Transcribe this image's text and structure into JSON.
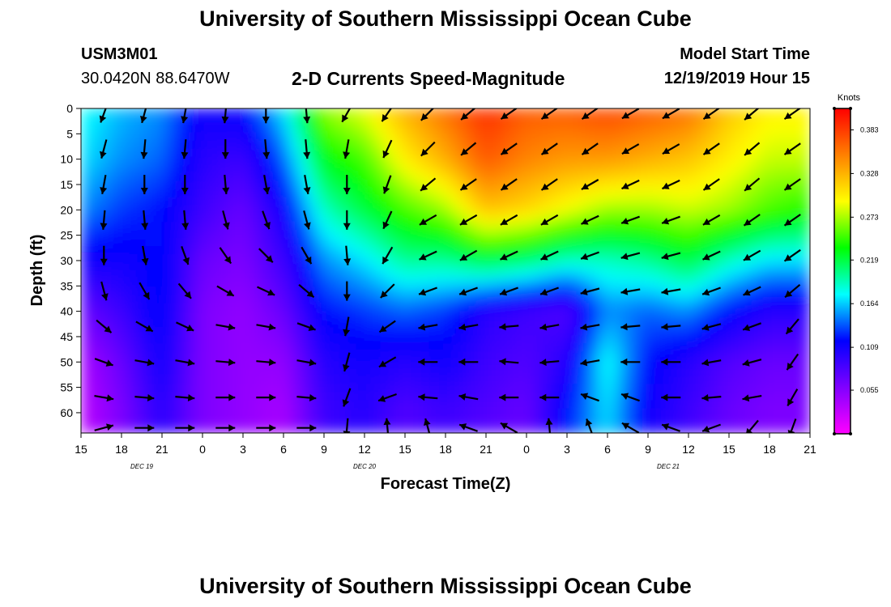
{
  "header": {
    "title": "University of Southern Mississippi Ocean Cube",
    "station_id": "USM3M01",
    "location": "30.0420N 88.6470W",
    "model_label": "Model Start Time",
    "model_start": "12/19/2019 Hour 15",
    "footer_title": "University of Southern Mississippi Ocean Cube"
  },
  "chart_data": {
    "type": "heatmap",
    "title": "2-D Currents Speed-Magnitude",
    "xlabel": "Forecast Time(Z)",
    "ylabel": "Depth (ft)",
    "x_ticks": [
      "15",
      "18",
      "21",
      "0",
      "3",
      "6",
      "9",
      "12",
      "15",
      "18",
      "21",
      "0",
      "3",
      "6",
      "9",
      "12",
      "15",
      "18",
      "21"
    ],
    "x_range_hours": [
      0,
      54
    ],
    "date_labels": [
      {
        "text": "DEC 19",
        "hour": 4.5
      },
      {
        "text": "DEC 20",
        "hour": 21
      },
      {
        "text": "DEC 21",
        "hour": 43.5
      }
    ],
    "y_ticks": [
      0,
      5,
      10,
      15,
      20,
      25,
      30,
      35,
      40,
      45,
      50,
      55,
      60
    ],
    "y_range_ft": [
      0,
      64
    ],
    "y_inverted": true,
    "colorbar": {
      "label": "Knots",
      "ticks": [
        "0.383",
        "0.328",
        "0.273",
        "0.219",
        "0.164",
        "0.109",
        "0.055"
      ],
      "range": [
        0.0,
        0.41
      ],
      "colormap": [
        "#ff00ff",
        "#8000ff",
        "#0000ff",
        "#00ffff",
        "#00ff00",
        "#ffff00",
        "#ff8000",
        "#ff0000"
      ]
    },
    "profile_times_hours": [
      0,
      3,
      6,
      9,
      12,
      15,
      18,
      21,
      24,
      27,
      30,
      33,
      36,
      39,
      42,
      45,
      48,
      51,
      54
    ],
    "profile_depths_ft": [
      0,
      10,
      20,
      30,
      40,
      50,
      60,
      64
    ],
    "speed_knots": [
      [
        0.18,
        0.17,
        0.15,
        0.11,
        0.07,
        0.04,
        0.03,
        0.03
      ],
      [
        0.16,
        0.15,
        0.13,
        0.11,
        0.09,
        0.07,
        0.06,
        0.06
      ],
      [
        0.15,
        0.14,
        0.12,
        0.12,
        0.12,
        0.11,
        0.1,
        0.1
      ],
      [
        0.11,
        0.1,
        0.09,
        0.07,
        0.06,
        0.06,
        0.06,
        0.06
      ],
      [
        0.12,
        0.09,
        0.07,
        0.06,
        0.05,
        0.05,
        0.05,
        0.05
      ],
      [
        0.17,
        0.14,
        0.11,
        0.09,
        0.07,
        0.05,
        0.04,
        0.04
      ],
      [
        0.27,
        0.23,
        0.19,
        0.15,
        0.12,
        0.1,
        0.09,
        0.09
      ],
      [
        0.29,
        0.25,
        0.22,
        0.17,
        0.13,
        0.11,
        0.1,
        0.1
      ],
      [
        0.33,
        0.3,
        0.25,
        0.2,
        0.14,
        0.1,
        0.08,
        0.08
      ],
      [
        0.36,
        0.33,
        0.27,
        0.2,
        0.13,
        0.11,
        0.09,
        0.09
      ],
      [
        0.39,
        0.37,
        0.32,
        0.22,
        0.1,
        0.09,
        0.08,
        0.08
      ],
      [
        0.37,
        0.35,
        0.31,
        0.21,
        0.09,
        0.08,
        0.07,
        0.07
      ],
      [
        0.37,
        0.34,
        0.29,
        0.19,
        0.08,
        0.1,
        0.12,
        0.12
      ],
      [
        0.38,
        0.34,
        0.27,
        0.19,
        0.15,
        0.18,
        0.17,
        0.17
      ],
      [
        0.37,
        0.33,
        0.27,
        0.2,
        0.14,
        0.12,
        0.11,
        0.11
      ],
      [
        0.36,
        0.32,
        0.28,
        0.22,
        0.15,
        0.1,
        0.09,
        0.09
      ],
      [
        0.32,
        0.3,
        0.27,
        0.19,
        0.12,
        0.08,
        0.07,
        0.07
      ],
      [
        0.3,
        0.28,
        0.25,
        0.17,
        0.1,
        0.07,
        0.06,
        0.06
      ],
      [
        0.3,
        0.28,
        0.24,
        0.17,
        0.1,
        0.07,
        0.06,
        0.06
      ]
    ],
    "vectors": {
      "columns_hours": [
        0.8,
        3.8,
        6.8,
        9.8,
        12.8,
        15.8,
        18.8,
        21.8,
        24.8,
        27.8,
        30.8,
        33.8,
        36.8,
        39.8,
        42.8,
        45.8,
        48.8,
        51.8
      ],
      "rows_ft": [
        1,
        8,
        15,
        22,
        29,
        36,
        43,
        50,
        57,
        63
      ],
      "direction_deg": [
        [
          250,
          255,
          260,
          265,
          270,
          285,
          320,
          340,
          350,
          15
        ],
        [
          255,
          265,
          270,
          275,
          280,
          300,
          330,
          350,
          355,
          0
        ],
        [
          260,
          265,
          270,
          275,
          290,
          310,
          335,
          350,
          355,
          0
        ],
        [
          265,
          270,
          275,
          285,
          305,
          330,
          350,
          355,
          0,
          0
        ],
        [
          270,
          275,
          280,
          290,
          315,
          335,
          350,
          355,
          0,
          0
        ],
        [
          275,
          275,
          280,
          285,
          300,
          320,
          340,
          350,
          355,
          0
        ],
        [
          240,
          260,
          270,
          270,
          275,
          270,
          260,
          255,
          250,
          265
        ],
        [
          235,
          245,
          250,
          245,
          240,
          225,
          215,
          210,
          200,
          95
        ],
        [
          225,
          225,
          220,
          210,
          205,
          200,
          190,
          180,
          175,
          105
        ],
        [
          220,
          220,
          215,
          210,
          210,
          200,
          190,
          180,
          170,
          160
        ],
        [
          215,
          215,
          215,
          210,
          205,
          200,
          185,
          175,
          180,
          150
        ],
        [
          215,
          215,
          215,
          210,
          205,
          200,
          190,
          185,
          180,
          95
        ],
        [
          215,
          215,
          210,
          205,
          200,
          195,
          190,
          190,
          160,
          110
        ],
        [
          210,
          210,
          205,
          200,
          195,
          190,
          185,
          180,
          160,
          150
        ],
        [
          210,
          210,
          205,
          200,
          195,
          190,
          185,
          180,
          180,
          160
        ],
        [
          215,
          215,
          215,
          210,
          205,
          200,
          195,
          190,
          185,
          200
        ],
        [
          220,
          220,
          220,
          215,
          210,
          205,
          200,
          195,
          190,
          230
        ],
        [
          215,
          215,
          215,
          215,
          215,
          220,
          230,
          235,
          240,
          250
        ]
      ]
    }
  }
}
